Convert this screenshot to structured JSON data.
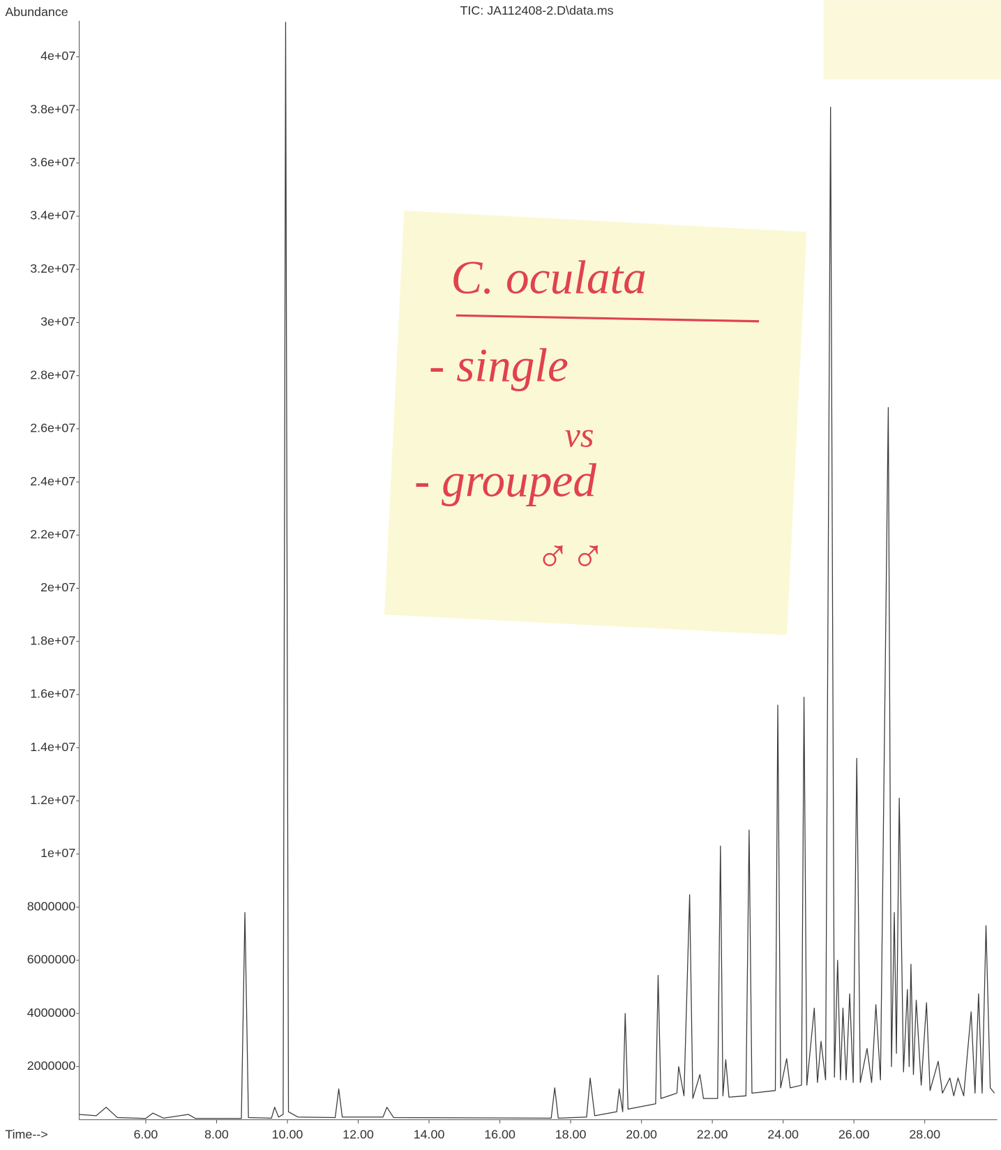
{
  "chart_data": {
    "type": "line",
    "title": "TIC: JA112408-2.D\\data.ms",
    "y_label": "Abundance",
    "x_label": "Time-->",
    "color": "#3a3a3a",
    "xlim": [
      4.12,
      30.05
    ],
    "ylim": [
      0,
      41300000
    ],
    "xticks": [
      {
        "value": 6,
        "label": "6.00"
      },
      {
        "value": 8,
        "label": "8.00"
      },
      {
        "value": 10,
        "label": "10.00"
      },
      {
        "value": 12,
        "label": "12.00"
      },
      {
        "value": 14,
        "label": "14.00"
      },
      {
        "value": 16,
        "label": "16.00"
      },
      {
        "value": 18,
        "label": "18.00"
      },
      {
        "value": 20,
        "label": "20.00"
      },
      {
        "value": 22,
        "label": "22.00"
      },
      {
        "value": 24,
        "label": "24.00"
      },
      {
        "value": 26,
        "label": "26.00"
      },
      {
        "value": 28,
        "label": "28.00"
      }
    ],
    "yticks": [
      2000000,
      4000000,
      6000000,
      8000000,
      {
        "value": 10000000,
        "label": "1e+07"
      },
      {
        "value": 12000000,
        "label": "1.2e+07"
      },
      {
        "value": 14000000,
        "label": "1.4e+07"
      },
      {
        "value": 16000000,
        "label": "1.6e+07"
      },
      {
        "value": 18000000,
        "label": "1.8e+07"
      },
      {
        "value": 20000000,
        "label": "2e+07"
      },
      {
        "value": 22000000,
        "label": "2.2e+07"
      },
      {
        "value": 24000000,
        "label": "2.4e+07"
      },
      {
        "value": 26000000,
        "label": "2.6e+07"
      },
      {
        "value": 28000000,
        "label": "2.8e+07"
      },
      {
        "value": 30000000,
        "label": "3e+07"
      },
      {
        "value": 32000000,
        "label": "3.2e+07"
      },
      {
        "value": 34000000,
        "label": "3.4e+07"
      },
      {
        "value": 36000000,
        "label": "3.6e+07"
      },
      {
        "value": 38000000,
        "label": "3.8e+07"
      },
      {
        "value": 40000000,
        "label": "4e+07"
      }
    ],
    "x": [
      4.12,
      4.6,
      4.88,
      5.2,
      6.0,
      6.2,
      6.5,
      7.2,
      7.4,
      8.7,
      8.8,
      8.9,
      9.55,
      9.64,
      9.75,
      9.88,
      9.95,
      10.03,
      10.3,
      11.35,
      11.45,
      11.55,
      12.7,
      12.81,
      13.0,
      17.45,
      17.55,
      17.65,
      18.45,
      18.55,
      18.68,
      19.3,
      19.37,
      19.47,
      19.54,
      19.62,
      20.4,
      20.47,
      20.55,
      21.0,
      21.05,
      21.2,
      21.36,
      21.45,
      21.65,
      21.75,
      22.15,
      22.23,
      22.3,
      22.38,
      22.47,
      22.95,
      23.04,
      23.12,
      23.78,
      23.85,
      23.93,
      24.1,
      24.2,
      24.52,
      24.59,
      24.67,
      24.88,
      24.97,
      25.07,
      25.2,
      25.34,
      25.45,
      25.54,
      25.62,
      25.69,
      25.78,
      25.88,
      25.98,
      26.08,
      26.18,
      26.37,
      26.5,
      26.62,
      26.75,
      26.97,
      27.06,
      27.14,
      27.2,
      27.28,
      27.4,
      27.51,
      27.56,
      27.61,
      27.68,
      27.76,
      27.9,
      28.05,
      28.15,
      28.38,
      28.5,
      28.71,
      28.82,
      28.94,
      29.1,
      29.31,
      29.42,
      29.52,
      29.62,
      29.73,
      29.85,
      29.97
    ],
    "values": [
      200000,
      150000,
      470000,
      80000,
      50000,
      250000,
      60000,
      200000,
      50000,
      50000,
      7800000,
      80000,
      60000,
      470000,
      100000,
      200000,
      41300000,
      300000,
      100000,
      80000,
      1160000,
      100000,
      100000,
      470000,
      80000,
      60000,
      1200000,
      60000,
      100000,
      1570000,
      150000,
      300000,
      1160000,
      300000,
      4000000,
      400000,
      600000,
      5430000,
      800000,
      1000000,
      2000000,
      900000,
      8470000,
      800000,
      1700000,
      800000,
      800000,
      10300000,
      900000,
      2260000,
      850000,
      900000,
      10900000,
      1000000,
      1100000,
      15600000,
      1200000,
      2300000,
      1200000,
      1300000,
      15900000,
      1300000,
      4200000,
      1400000,
      2950000,
      1500000,
      38100000,
      1600000,
      6000000,
      1500000,
      4200000,
      1500000,
      4740000,
      1400000,
      13600000,
      1400000,
      2680000,
      1400000,
      4330000,
      1500000,
      26800000,
      2000000,
      7800000,
      2500000,
      12100000,
      1800000,
      4900000,
      2000000,
      5850000,
      1700000,
      4500000,
      1300000,
      4400000,
      1100000,
      2200000,
      1000000,
      1570000,
      900000,
      1570000,
      900000,
      4060000,
      1000000,
      4740000,
      1000000,
      7300000,
      1200000,
      1000000
    ],
    "annotations": [
      "C. oculata",
      "- single",
      "vs",
      "- grouped",
      "♂♂"
    ]
  }
}
